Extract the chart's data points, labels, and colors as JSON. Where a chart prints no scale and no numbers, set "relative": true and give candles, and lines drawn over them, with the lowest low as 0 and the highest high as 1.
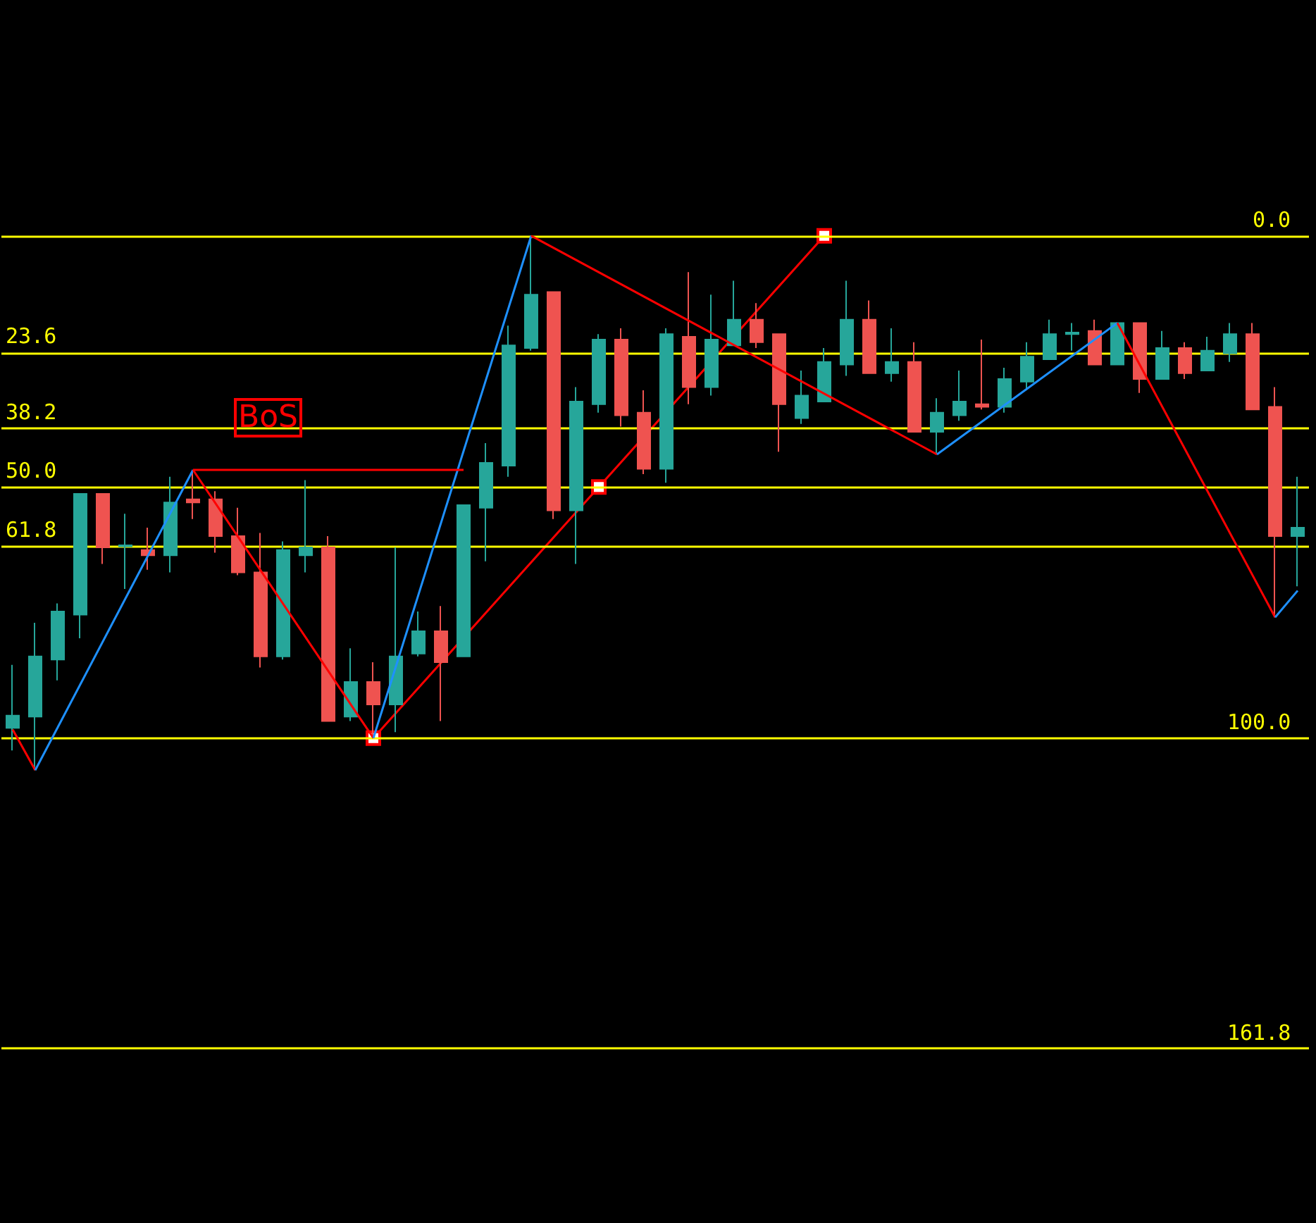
{
  "chart_data": {
    "type": "candlestick",
    "relative": true,
    "grid": false,
    "legend": false,
    "categories": [
      null,
      null,
      null,
      null,
      null,
      null,
      null,
      null,
      null,
      null,
      null,
      null,
      null,
      null,
      null,
      null,
      null,
      null,
      null,
      null,
      null,
      null,
      null,
      null,
      null,
      null,
      null,
      null,
      null,
      null,
      null,
      null,
      null,
      null,
      null,
      null,
      null,
      null,
      null,
      null,
      null,
      null,
      null,
      null,
      null,
      null,
      null,
      null,
      null,
      null,
      null,
      null,
      null,
      null,
      null,
      null,
      null,
      null
    ],
    "ohlc": [
      [
        0.079,
        0.197,
        0.037,
        0.102
      ],
      [
        0.1,
        0.276,
        0,
        0.213
      ],
      [
        0.207,
        0.312,
        0.168,
        0.297
      ],
      [
        0.291,
        0.517,
        0.247,
        0.517
      ],
      [
        0.517,
        0.517,
        0.386,
        0.417
      ],
      [
        0.419,
        0.48,
        0.339,
        0.421
      ],
      [
        0.412,
        0.454,
        0.375,
        0.402
      ],
      [
        0.402,
        0.549,
        0.37,
        0.501
      ],
      [
        0.507,
        0.562,
        0.47,
        0.501
      ],
      [
        0.507,
        0.522,
        0.407,
        0.438
      ],
      [
        0.438,
        0.491,
        0.365,
        0.37
      ],
      [
        0.37,
        0.444,
        0.192,
        0.213
      ],
      [
        0.213,
        0.428,
        0.207,
        0.412
      ],
      [
        0.402,
        0.543,
        0.37,
        0.417
      ],
      [
        0.417,
        0.438,
        0.092,
        0.092
      ],
      [
        0.1,
        0.228,
        0.092,
        0.165
      ],
      [
        0.165,
        0.202,
        0.06,
        0.123
      ],
      [
        0.123,
        0.417,
        0.071,
        0.213
      ],
      [
        0.218,
        0.297,
        0.213,
        0.26
      ],
      [
        0.26,
        0.307,
        0.092,
        0.202
      ],
      [
        0.213,
        0.496,
        0.213,
        0.496
      ],
      [
        0.491,
        0.612,
        0.391,
        0.575
      ],
      [
        0.57,
        0.832,
        0.549,
        0.795
      ],
      [
        0.79,
        1,
        0.785,
        0.89
      ],
      [
        0.895,
        0.895,
        0.47,
        0.486
      ],
      [
        0.486,
        0.717,
        0.386,
        0.69
      ],
      [
        0.685,
        0.816,
        0.669,
        0.806
      ],
      [
        0.806,
        0.827,
        0.643,
        0.664
      ],
      [
        0.669,
        0.711,
        0.554,
        0.564
      ],
      [
        0.564,
        0.827,
        0.538,
        0.816
      ],
      [
        0.811,
        0.932,
        0.685,
        0.717
      ],
      [
        0.717,
        0.89,
        0.701,
        0.806
      ],
      [
        0.795,
        0.916,
        0.795,
        0.843
      ],
      [
        0.843,
        0.874,
        0.79,
        0.801
      ],
      [
        0.816,
        0.816,
        0.596,
        0.685
      ],
      [
        0.659,
        0.748,
        0.648,
        0.701
      ],
      [
        0.69,
        0.79,
        0.69,
        0.764
      ],
      [
        0.759,
        0.916,
        0.738,
        0.843
      ],
      [
        0.843,
        0.879,
        0.743,
        0.743
      ],
      [
        0.743,
        0.827,
        0.727,
        0.764
      ],
      [
        0.764,
        0.801,
        0.633,
        0.633
      ],
      [
        0.633,
        0.696,
        0.591,
        0.669
      ],
      [
        0.664,
        0.748,
        0.654,
        0.69
      ],
      [
        0.685,
        0.806,
        0.675,
        0.68
      ],
      [
        0.68,
        0.753,
        0.669,
        0.732
      ],
      [
        0.727,
        0.801,
        0.711,
        0.774
      ],
      [
        0.769,
        0.843,
        0.769,
        0.816
      ],
      [
        0.816,
        0.837,
        0.785,
        0.819
      ],
      [
        0.822,
        0.843,
        0.759,
        0.759
      ],
      [
        0.759,
        0.837,
        0.759,
        0.837
      ],
      [
        0.837,
        0.837,
        0.706,
        0.732
      ],
      [
        0.732,
        0.822,
        0.732,
        0.79
      ],
      [
        0.79,
        0.801,
        0.732,
        0.743
      ],
      [
        0.748,
        0.811,
        0.748,
        0.785
      ],
      [
        0.78,
        0.837,
        0.764,
        0.816
      ],
      [
        0.816,
        0.837,
        0.675,
        0.675
      ],
      [
        0.68,
        0.717,
        0.286,
        0.438
      ],
      [
        0.438,
        0.549,
        0.344,
        0.454
      ]
    ],
    "colors": [
      "#26a69a",
      "#26a69a",
      "#26a69a",
      "#26a69a",
      "#ef5350",
      "#26a69a",
      "#ef5350",
      "#26a69a",
      "#ef5350",
      "#ef5350",
      "#ef5350",
      "#ef5350",
      "#26a69a",
      "#26a69a",
      "#ef5350",
      "#26a69a",
      "#ef5350",
      "#26a69a",
      "#26a69a",
      "#ef5350",
      "#26a69a",
      "#26a69a",
      "#26a69a",
      "#26a69a",
      "#ef5350",
      "#26a69a",
      "#26a69a",
      "#ef5350",
      "#ef5350",
      "#26a69a",
      "#ef5350",
      "#26a69a",
      "#26a69a",
      "#ef5350",
      "#ef5350",
      "#26a69a",
      "#26a69a",
      "#26a69a",
      "#ef5350",
      "#26a69a",
      "#ef5350",
      "#26a69a",
      "#26a69a",
      "#ef5350",
      "#26a69a",
      "#26a69a",
      "#26a69a",
      "#26a69a",
      "#ef5350",
      "#26a69a",
      "#ef5350",
      "#26a69a",
      "#ef5350",
      "#26a69a",
      "#26a69a",
      "#ef5350",
      "#ef5350",
      "#26a69a"
    ],
    "series": [
      {
        "type": "line",
        "color": "#ff0000",
        "marker": "none",
        "values": [
          0.076,
          0,
          null,
          null,
          null,
          null,
          null,
          null,
          null,
          null,
          null,
          null,
          null,
          null,
          null,
          null,
          null,
          null,
          null,
          null,
          null,
          null,
          null,
          null,
          null,
          null,
          null,
          null,
          null,
          null,
          null,
          null,
          null,
          null,
          null,
          null,
          null,
          null,
          null,
          null,
          null,
          null,
          null,
          null,
          null,
          null,
          null,
          null,
          null,
          null,
          null,
          null,
          null,
          null,
          null,
          null,
          null,
          null
        ]
      },
      {
        "type": "line",
        "color": "#1e90ff",
        "marker": "none",
        "values": [
          null,
          0,
          null,
          null,
          null,
          null,
          null,
          null,
          0.562,
          null,
          null,
          null,
          null,
          null,
          null,
          null,
          null,
          null,
          null,
          null,
          null,
          null,
          null,
          null,
          null,
          null,
          null,
          null,
          null,
          null,
          null,
          null,
          null,
          null,
          null,
          null,
          null,
          null,
          null,
          null,
          null,
          null,
          null,
          null,
          null,
          null,
          null,
          null,
          null,
          null,
          null,
          null,
          null,
          null,
          null,
          null,
          null,
          null
        ]
      },
      {
        "type": "line",
        "color": "#ff0000",
        "values": [
          null,
          null,
          null,
          null,
          null,
          null,
          null,
          null,
          0.562,
          null,
          null,
          null,
          null,
          null,
          null,
          null,
          0.06,
          null,
          null,
          null,
          null,
          null,
          null,
          null,
          null,
          null,
          null,
          null,
          null,
          null,
          null,
          null,
          null,
          null,
          null,
          null,
          null,
          null,
          null,
          null,
          null,
          null,
          null,
          null,
          null,
          null,
          null,
          null,
          null,
          null,
          null,
          null,
          null,
          null,
          null,
          null,
          null,
          null
        ]
      },
      {
        "type": "line",
        "color": "#1e90ff",
        "marker": "none",
        "values": [
          null,
          null,
          null,
          null,
          null,
          null,
          null,
          null,
          null,
          null,
          null,
          null,
          null,
          null,
          null,
          null,
          0.06,
          null,
          null,
          null,
          null,
          null,
          null,
          1,
          null,
          null,
          null,
          null,
          null,
          null,
          null,
          null,
          null,
          null,
          null,
          null,
          null,
          null,
          null,
          null,
          null,
          null,
          null,
          null,
          null,
          null,
          null,
          null,
          null,
          null,
          null,
          null,
          null,
          null,
          null,
          null,
          null,
          null
        ]
      },
      {
        "type": "line",
        "color": "#ff0000",
        "marker": "none",
        "values": [
          null,
          null,
          null,
          null,
          null,
          null,
          null,
          null,
          null,
          null,
          null,
          null,
          null,
          null,
          null,
          null,
          null,
          null,
          null,
          null,
          null,
          null,
          null,
          1,
          null,
          null,
          null,
          null,
          null,
          null,
          null,
          null,
          null,
          null,
          null,
          null,
          null,
          null,
          null,
          null,
          null,
          0.591,
          null,
          null,
          null,
          null,
          null,
          null,
          null,
          null,
          null,
          null,
          null,
          null,
          null,
          null,
          null,
          null
        ]
      },
      {
        "type": "line",
        "color": "#1e90ff",
        "marker": "none",
        "values": [
          null,
          null,
          null,
          null,
          null,
          null,
          null,
          null,
          null,
          null,
          null,
          null,
          null,
          null,
          null,
          null,
          null,
          null,
          null,
          null,
          null,
          null,
          null,
          null,
          null,
          null,
          null,
          null,
          null,
          null,
          null,
          null,
          null,
          null,
          null,
          null,
          null,
          null,
          null,
          null,
          null,
          0.591,
          null,
          null,
          null,
          null,
          null,
          null,
          null,
          0.837,
          null,
          null,
          null,
          null,
          null,
          null,
          null,
          null
        ]
      },
      {
        "type": "line",
        "color": "#ff0000",
        "marker": "none",
        "values": [
          null,
          null,
          null,
          null,
          null,
          null,
          null,
          null,
          null,
          null,
          null,
          null,
          null,
          null,
          null,
          null,
          null,
          null,
          null,
          null,
          null,
          null,
          null,
          null,
          null,
          null,
          null,
          null,
          null,
          null,
          null,
          null,
          null,
          null,
          null,
          null,
          null,
          null,
          null,
          null,
          null,
          null,
          null,
          null,
          null,
          null,
          null,
          null,
          null,
          0.837,
          null,
          null,
          null,
          null,
          null,
          null,
          0.286,
          null
        ]
      },
      {
        "type": "line",
        "color": "#1e90ff",
        "marker": "none",
        "values": [
          null,
          null,
          null,
          null,
          null,
          null,
          null,
          null,
          null,
          null,
          null,
          null,
          null,
          null,
          null,
          null,
          null,
          null,
          null,
          null,
          null,
          null,
          null,
          null,
          null,
          null,
          null,
          null,
          null,
          null,
          null,
          null,
          null,
          null,
          null,
          null,
          null,
          null,
          null,
          null,
          null,
          null,
          null,
          null,
          null,
          null,
          null,
          null,
          null,
          null,
          null,
          null,
          null,
          null,
          null,
          null,
          0.286,
          0.336
        ]
      },
      {
        "type": "line",
        "color": "#ff0000",
        "marker": "square",
        "values": [
          null,
          null,
          null,
          null,
          null,
          null,
          null,
          null,
          null,
          null,
          null,
          null,
          null,
          null,
          null,
          null,
          0.06,
          null,
          null,
          null,
          null,
          null,
          null,
          null,
          null,
          null,
          0.53,
          null,
          null,
          null,
          null,
          null,
          null,
          null,
          null,
          null,
          1,
          null,
          null,
          null,
          null,
          null,
          null,
          null,
          null,
          null,
          null,
          null,
          null,
          null,
          null,
          null,
          null,
          null,
          null,
          null,
          null,
          null
        ]
      },
      {
        "type": "line",
        "name": "BoS",
        "color": "#ff0000",
        "marker": "none",
        "values": [
          null,
          null,
          null,
          null,
          null,
          null,
          null,
          null,
          0.562,
          null,
          null,
          null,
          null,
          null,
          null,
          null,
          null,
          null,
          null,
          null,
          0.562,
          null,
          null,
          null,
          null,
          null,
          null,
          null,
          null,
          null,
          null,
          null,
          null,
          null,
          null,
          null,
          null,
          null,
          null,
          null,
          null,
          null,
          null,
          null,
          null,
          null,
          null,
          null,
          null,
          null,
          null,
          null,
          null,
          null,
          null,
          null,
          null,
          null
        ]
      }
    ],
    "ref_lines": [
      {
        "axis": "y",
        "value": 1,
        "color": "#ffff00"
      },
      {
        "axis": "y",
        "value": 0.782,
        "color": "#ffff00"
      },
      {
        "axis": "y",
        "value": 0.64,
        "color": "#ffff00"
      },
      {
        "axis": "y",
        "value": 0.53,
        "color": "#ffff00"
      },
      {
        "axis": "y",
        "value": 0.42,
        "color": "#ffff00"
      },
      {
        "axis": "y",
        "value": 0.06,
        "color": "#ffff00"
      },
      {
        "axis": "y",
        "value": -0.522,
        "color": "#ffff00"
      }
    ],
    "annotations": [
      {
        "text": "0.0",
        "y": 1
      },
      {
        "text": "23.6",
        "y": 0.782
      },
      {
        "text": "38.2",
        "y": 0.64
      },
      {
        "text": "50.0",
        "y": 0.53
      },
      {
        "text": "61.8",
        "y": 0.42
      },
      {
        "text": "100.0",
        "y": 0.06
      },
      {
        "text": "161.8",
        "y": -0.522
      }
    ]
  }
}
